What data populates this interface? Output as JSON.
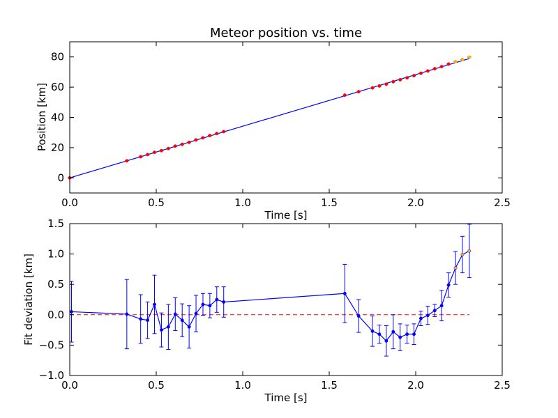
{
  "chart_data": [
    {
      "type": "scatter",
      "title": "Meteor position vs. time",
      "xlabel": "Time [s]",
      "ylabel": "Position [km]",
      "xlim": [
        0.0,
        2.5
      ],
      "ylim": [
        -10,
        90
      ],
      "xticks": [
        "0.0",
        "0.5",
        "1.0",
        "1.5",
        "2.0",
        "2.5"
      ],
      "yticks": [
        "0",
        "20",
        "40",
        "60",
        "80"
      ],
      "xtick_values": [
        0.0,
        0.5,
        1.0,
        1.5,
        2.0,
        2.5
      ],
      "ytick_values": [
        0,
        20,
        40,
        60,
        80
      ],
      "grid": false,
      "colors": {
        "fit": "#0000ff",
        "points": "#ff0000",
        "late_points": "#ffb000",
        "errorbars": "#4040ff"
      },
      "fit_line": {
        "x": [
          0.0,
          2.31
        ],
        "y": [
          0.0,
          78.9
        ]
      },
      "series": [
        {
          "x": [
            0.0,
            0.33,
            0.41,
            0.45,
            0.49,
            0.53,
            0.57,
            0.61,
            0.65,
            0.69,
            0.73,
            0.77,
            0.81,
            0.85,
            0.89,
            1.59,
            1.67,
            1.75,
            1.79,
            1.83,
            1.87,
            1.91,
            1.95,
            1.99,
            2.03,
            2.07,
            2.11,
            2.15,
            2.19
          ],
          "y": [
            0.0,
            11.3,
            14.0,
            15.4,
            16.9,
            18.0,
            19.4,
            21.0,
            22.2,
            23.5,
            25.1,
            26.5,
            28.0,
            29.3,
            30.6,
            54.7,
            57.0,
            59.5,
            60.8,
            62.0,
            63.6,
            64.9,
            66.2,
            67.6,
            69.2,
            70.7,
            72.2,
            73.6,
            75.3
          ],
          "color": "#ff0000"
        },
        {
          "x": [
            2.23,
            2.27,
            2.31
          ],
          "y": [
            76.9,
            78.3,
            79.9
          ],
          "color": "#ffb000"
        }
      ]
    },
    {
      "type": "line",
      "xlabel": "Time [s]",
      "ylabel": "Fit deviation [km]",
      "xlim": [
        0.0,
        2.5
      ],
      "ylim": [
        -1.0,
        1.5
      ],
      "xticks": [
        "0.0",
        "0.5",
        "1.0",
        "1.5",
        "2.0",
        "2.5"
      ],
      "yticks": [
        "−1.0",
        "−0.5",
        "0.0",
        "0.5",
        "1.0",
        "1.5"
      ],
      "xtick_values": [
        0.0,
        0.5,
        1.0,
        1.5,
        2.0,
        2.5
      ],
      "ytick_values": [
        -1.0,
        -0.5,
        0.0,
        0.5,
        1.0,
        1.5
      ],
      "grid": false,
      "colors": {
        "line": "#0000ff",
        "zero_line": "#ff0000",
        "late_points": "#ffb000"
      },
      "reference_line": {
        "y": 0.0,
        "x": [
          0.0,
          2.31
        ],
        "style": "dashed"
      },
      "x": [
        0.01,
        0.33,
        0.41,
        0.45,
        0.49,
        0.53,
        0.57,
        0.61,
        0.65,
        0.69,
        0.73,
        0.77,
        0.81,
        0.85,
        0.89,
        1.59,
        1.67,
        1.75,
        1.79,
        1.83,
        1.87,
        1.91,
        1.95,
        1.99,
        2.03,
        2.07,
        2.11,
        2.15,
        2.19,
        2.23,
        2.27,
        2.31
      ],
      "y": [
        0.05,
        0.01,
        -0.07,
        -0.09,
        0.17,
        -0.25,
        -0.2,
        0.01,
        -0.09,
        -0.2,
        0.02,
        0.17,
        0.15,
        0.25,
        0.21,
        0.35,
        -0.02,
        -0.27,
        -0.32,
        -0.43,
        -0.28,
        -0.37,
        -0.32,
        -0.32,
        -0.06,
        -0.01,
        0.07,
        0.15,
        0.49,
        0.77,
        0.99,
        1.05
      ],
      "yerr": [
        0.5,
        0.57,
        0.4,
        0.3,
        0.48,
        0.28,
        0.37,
        0.27,
        0.27,
        0.35,
        0.3,
        0.18,
        0.2,
        0.21,
        0.25,
        0.48,
        0.27,
        0.25,
        0.15,
        0.25,
        0.28,
        0.22,
        0.15,
        0.17,
        0.12,
        0.15,
        0.1,
        0.25,
        0.2,
        0.27,
        0.3,
        0.44
      ],
      "late_start_index": 29
    }
  ]
}
